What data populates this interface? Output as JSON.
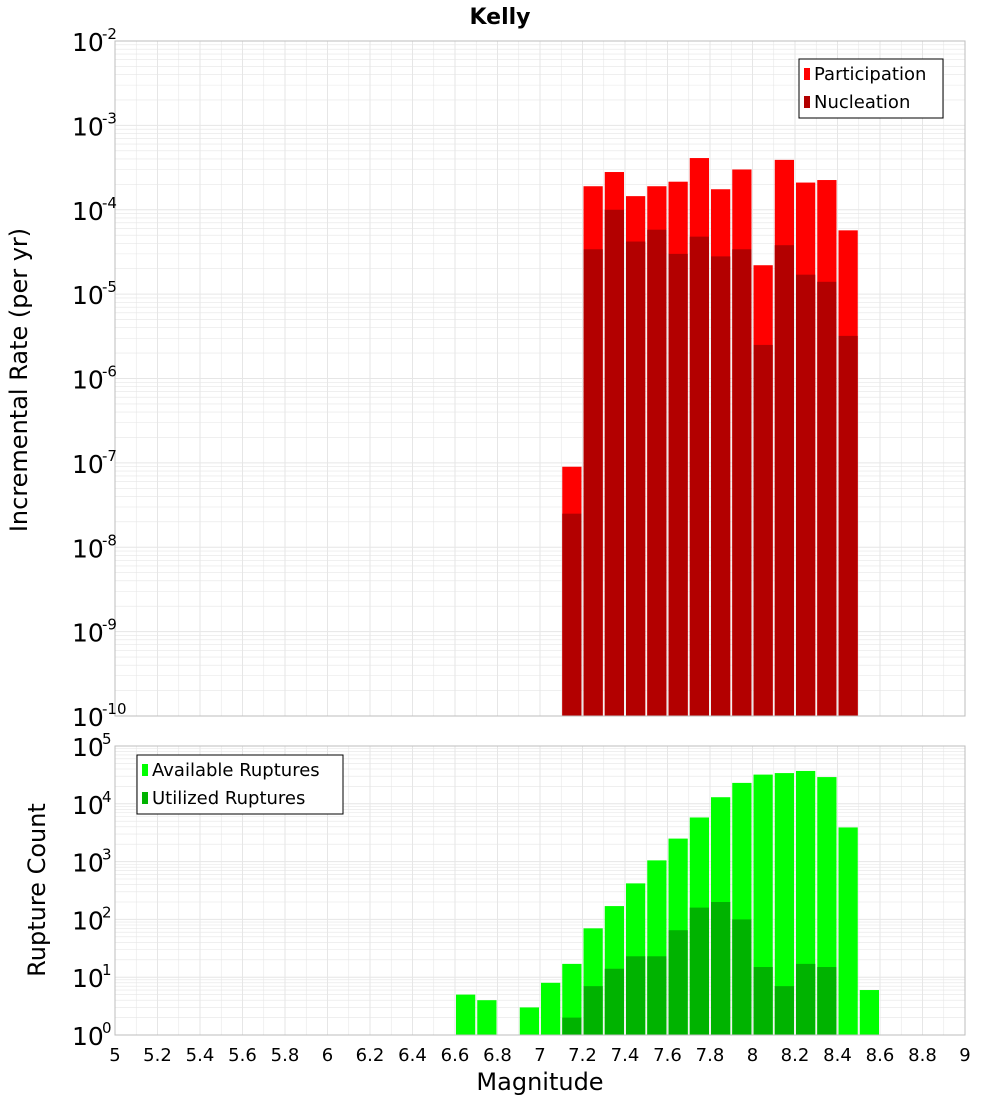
{
  "title": "Kelly",
  "colors": {
    "participation": "#ff0000",
    "nucleation": "#b30000",
    "available": "#00ff00",
    "utilized": "#00b300",
    "grid": "#e6e6e6",
    "frame": "#bdbdbd"
  },
  "chart_data": [
    {
      "type": "bar",
      "title": "Kelly",
      "xlabel": "Magnitude",
      "ylabel": "Incremental Rate (per yr)",
      "yscale": "log",
      "ylim": [
        1e-10,
        0.01
      ],
      "xlim": [
        5.0,
        9.0
      ],
      "bin_width": 0.1,
      "x": [
        7.15,
        7.25,
        7.35,
        7.45,
        7.55,
        7.65,
        7.75,
        7.85,
        7.95,
        8.05,
        8.15,
        8.25,
        8.35,
        8.45
      ],
      "series": [
        {
          "name": "Participation",
          "values": [
            9e-08,
            0.00019,
            0.00028,
            0.000145,
            0.00019,
            0.000215,
            0.00041,
            0.000175,
            0.0003,
            2.2e-05,
            0.00039,
            0.00021,
            0.000225,
            5.7e-05
          ]
        },
        {
          "name": "Nucleation",
          "values": [
            2.5e-08,
            3.4e-05,
            0.0001,
            4.2e-05,
            5.8e-05,
            3e-05,
            4.8e-05,
            2.8e-05,
            3.4e-05,
            2.5e-06,
            3.8e-05,
            1.7e-05,
            1.4e-05,
            3.2e-06
          ]
        }
      ],
      "legend": [
        "Participation",
        "Nucleation"
      ],
      "legend_position": "top-right"
    },
    {
      "type": "bar",
      "xlabel": "Magnitude",
      "ylabel": "Rupture Count",
      "yscale": "log",
      "ylim": [
        1,
        100000
      ],
      "xlim": [
        5.0,
        9.0
      ],
      "bin_width": 0.1,
      "xticks": [
        "5",
        "5.2",
        "5.4",
        "5.6",
        "5.8",
        "6",
        "6.2",
        "6.4",
        "6.6",
        "6.8",
        "7",
        "7.2",
        "7.4",
        "7.6",
        "7.8",
        "8",
        "8.2",
        "8.4",
        "8.6",
        "8.8",
        "9"
      ],
      "series": [
        {
          "name": "Available Ruptures",
          "x": [
            6.65,
            6.75,
            6.95,
            7.05,
            7.15,
            7.25,
            7.35,
            7.45,
            7.55,
            7.65,
            7.75,
            7.85,
            7.95,
            8.05,
            8.15,
            8.25,
            8.35,
            8.45,
            8.55
          ],
          "values": [
            5,
            4,
            3,
            8,
            17,
            70,
            170,
            420,
            1050,
            2500,
            5800,
            13000,
            23000,
            32000,
            34000,
            37000,
            29000,
            3900,
            6
          ]
        },
        {
          "name": "Utilized Ruptures",
          "x": [
            7.15,
            7.25,
            7.35,
            7.45,
            7.55,
            7.65,
            7.75,
            7.85,
            7.95,
            8.05,
            8.15,
            8.25,
            8.35,
            8.45
          ],
          "values": [
            2,
            7,
            14,
            23,
            23,
            65,
            160,
            200,
            100,
            15,
            7,
            17,
            15,
            1
          ]
        }
      ],
      "legend": [
        "Available Ruptures",
        "Utilized Ruptures"
      ],
      "legend_position": "top-left"
    }
  ]
}
